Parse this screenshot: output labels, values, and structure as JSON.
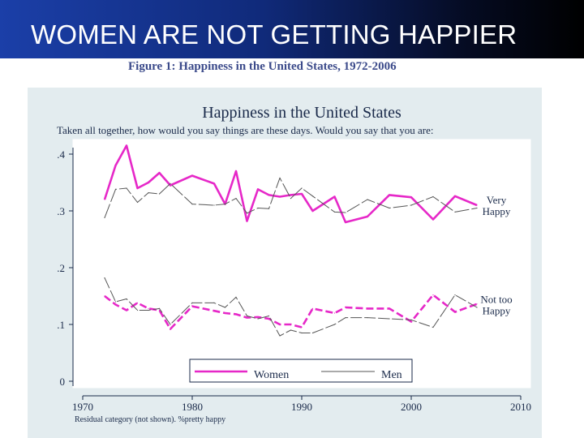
{
  "slide": {
    "title": "WOMEN ARE NOT GETTING HAPPIER",
    "figure_caption": "Figure 1: Happiness in the United States, 1972-2006"
  },
  "colors": {
    "women": "#e628c8",
    "men": "#555555",
    "title_gradient_start": "#1b3fa8",
    "panel_bg": "#e3ecef"
  },
  "chart_data": {
    "type": "line",
    "title": "Happiness in the United States",
    "subtitle": "Taken all together, how would you say things are these days.  Would you say that you are:",
    "note": "Residual category (not shown). %pretty happy",
    "xlim": [
      1970,
      2010
    ],
    "ylim": [
      0,
      0.4
    ],
    "x_ticks": [
      1970,
      1980,
      1990,
      2000,
      2010
    ],
    "y_ticks": [
      {
        "value": 0,
        "label": "0"
      },
      {
        "value": 0.1,
        "label": ".1"
      },
      {
        "value": 0.2,
        "label": ".2"
      },
      {
        "value": 0.3,
        "label": ".3"
      },
      {
        "value": 0.4,
        "label": ".4"
      }
    ],
    "annotations": [
      {
        "lines": [
          "Very",
          "Happy"
        ],
        "anchor_x": 2006,
        "anchor_y": 0.31
      },
      {
        "lines": [
          "Not too",
          "Happy"
        ],
        "anchor_x": 2006,
        "anchor_y": 0.135
      }
    ],
    "legend_position": "bottom",
    "series": [
      {
        "name": "Women",
        "key": "women",
        "group": "Very Happy",
        "x": [
          1972,
          1973,
          1974,
          1975,
          1976,
          1977,
          1978,
          1980,
          1982,
          1983,
          1984,
          1985,
          1986,
          1987,
          1988,
          1989,
          1990,
          1991,
          1993,
          1994,
          1996,
          1998,
          2000,
          2002,
          2004,
          2006
        ],
        "y": [
          0.32,
          0.38,
          0.415,
          0.34,
          0.35,
          0.367,
          0.345,
          0.362,
          0.348,
          0.312,
          0.37,
          0.282,
          0.338,
          0.328,
          0.325,
          0.328,
          0.33,
          0.3,
          0.325,
          0.28,
          0.29,
          0.328,
          0.324,
          0.285,
          0.326,
          0.31
        ]
      },
      {
        "name": "Men",
        "key": "men",
        "group": "Very Happy",
        "x": [
          1972,
          1973,
          1974,
          1975,
          1976,
          1977,
          1978,
          1980,
          1982,
          1983,
          1984,
          1985,
          1986,
          1987,
          1988,
          1989,
          1990,
          1991,
          1993,
          1994,
          1996,
          1998,
          2000,
          2002,
          2004,
          2006
        ],
        "y": [
          0.288,
          0.338,
          0.34,
          0.315,
          0.332,
          0.33,
          0.348,
          0.312,
          0.31,
          0.312,
          0.322,
          0.296,
          0.305,
          0.304,
          0.358,
          0.322,
          0.34,
          0.326,
          0.298,
          0.297,
          0.32,
          0.305,
          0.31,
          0.325,
          0.298,
          0.305
        ]
      },
      {
        "name": "Women",
        "key": "women",
        "group": "Not too Happy",
        "x": [
          1972,
          1973,
          1974,
          1975,
          1976,
          1977,
          1978,
          1980,
          1982,
          1983,
          1984,
          1985,
          1986,
          1987,
          1988,
          1989,
          1990,
          1991,
          1993,
          1994,
          1996,
          1998,
          2000,
          2002,
          2004,
          2006
        ],
        "y": [
          0.15,
          0.135,
          0.125,
          0.138,
          0.128,
          0.125,
          0.092,
          0.132,
          0.124,
          0.12,
          0.118,
          0.112,
          0.113,
          0.11,
          0.1,
          0.1,
          0.095,
          0.128,
          0.12,
          0.13,
          0.128,
          0.128,
          0.105,
          0.152,
          0.122,
          0.136
        ]
      },
      {
        "name": "Men",
        "key": "men",
        "group": "Not too Happy",
        "x": [
          1972,
          1973,
          1974,
          1975,
          1976,
          1977,
          1978,
          1980,
          1982,
          1983,
          1984,
          1985,
          1986,
          1987,
          1988,
          1989,
          1990,
          1991,
          1993,
          1994,
          1996,
          1998,
          2000,
          2002,
          2004,
          2006
        ],
        "y": [
          0.182,
          0.14,
          0.145,
          0.125,
          0.125,
          0.128,
          0.1,
          0.138,
          0.138,
          0.13,
          0.148,
          0.115,
          0.11,
          0.115,
          0.08,
          0.09,
          0.085,
          0.085,
          0.1,
          0.112,
          0.112,
          0.11,
          0.108,
          0.095,
          0.152,
          0.13
        ]
      }
    ],
    "legend": [
      {
        "label": "Women",
        "key": "women"
      },
      {
        "label": "Men",
        "key": "men"
      }
    ]
  }
}
